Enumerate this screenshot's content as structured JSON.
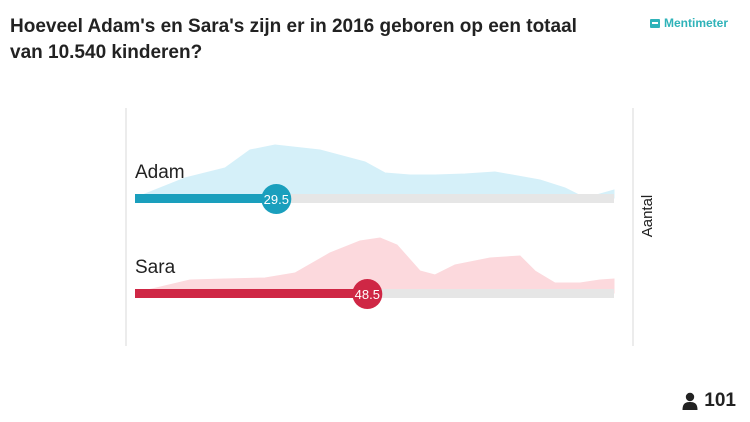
{
  "question": "Hoeveel Adam's en Sara's zijn er in 2016 geboren op een totaal van 10.540 kinderen?",
  "brand": {
    "name": "Mentimeter",
    "icon": "mentimeter-logo-icon"
  },
  "participants": {
    "icon": "person-icon",
    "count": "101"
  },
  "chart_data": {
    "type": "bar",
    "orientation": "horizontal",
    "xlim": [
      0,
      100
    ],
    "side_label": "Aantal",
    "series": [
      {
        "name": "Adam",
        "value": 29.5,
        "value_label": "29.5",
        "color": "#1a9fbd",
        "distribution_color": "#d5f0f9",
        "track_color": "#e6e6e6"
      },
      {
        "name": "Sara",
        "value": 48.5,
        "value_label": "48.5",
        "color": "#cf2745",
        "distribution_color": "#fcd9dd",
        "track_color": "#e6e6e6"
      }
    ]
  }
}
